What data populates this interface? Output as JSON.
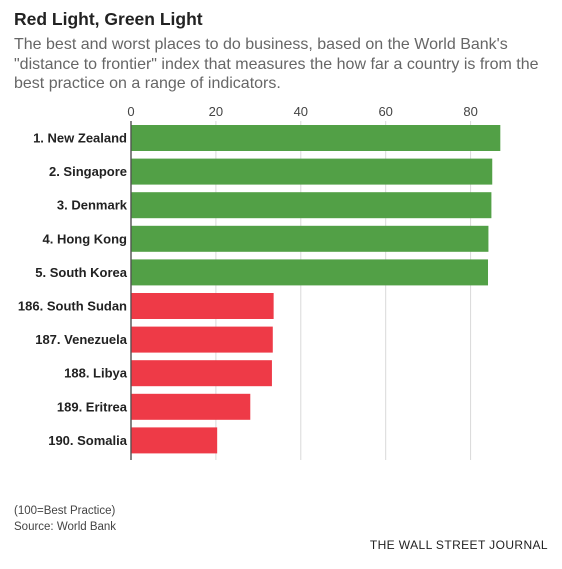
{
  "title": "Red Light, Green Light",
  "subtitle": "The best and worst places to do business, based on the World Bank's \"distance to frontier\" index that measures the how far a country is from the best practice on a range of indicators.",
  "chart_data": {
    "type": "bar",
    "orientation": "horizontal",
    "categories": [
      "1. New Zealand",
      "2. Singapore",
      "3. Denmark",
      "4. Hong Kong",
      "5. South Korea",
      "186. South Sudan",
      "187. Venezuela",
      "188. Libya",
      "189. Eritrea",
      "190. Somalia"
    ],
    "values": [
      87.0,
      85.1,
      84.9,
      84.2,
      84.1,
      33.6,
      33.4,
      33.2,
      28.1,
      20.3
    ],
    "bar_colors": [
      "#52a046",
      "#52a046",
      "#52a046",
      "#52a046",
      "#52a046",
      "#ee3a47",
      "#ee3a47",
      "#ee3a47",
      "#ee3a47",
      "#ee3a47"
    ],
    "xticks": [
      0,
      20,
      40,
      60,
      80
    ],
    "xlim": [
      0,
      90
    ],
    "grid": true,
    "xaxis_position": "top"
  },
  "footnote": "(100=Best Practice)",
  "source": "Source: World Bank",
  "brand": "THE WALL STREET JOURNAL"
}
